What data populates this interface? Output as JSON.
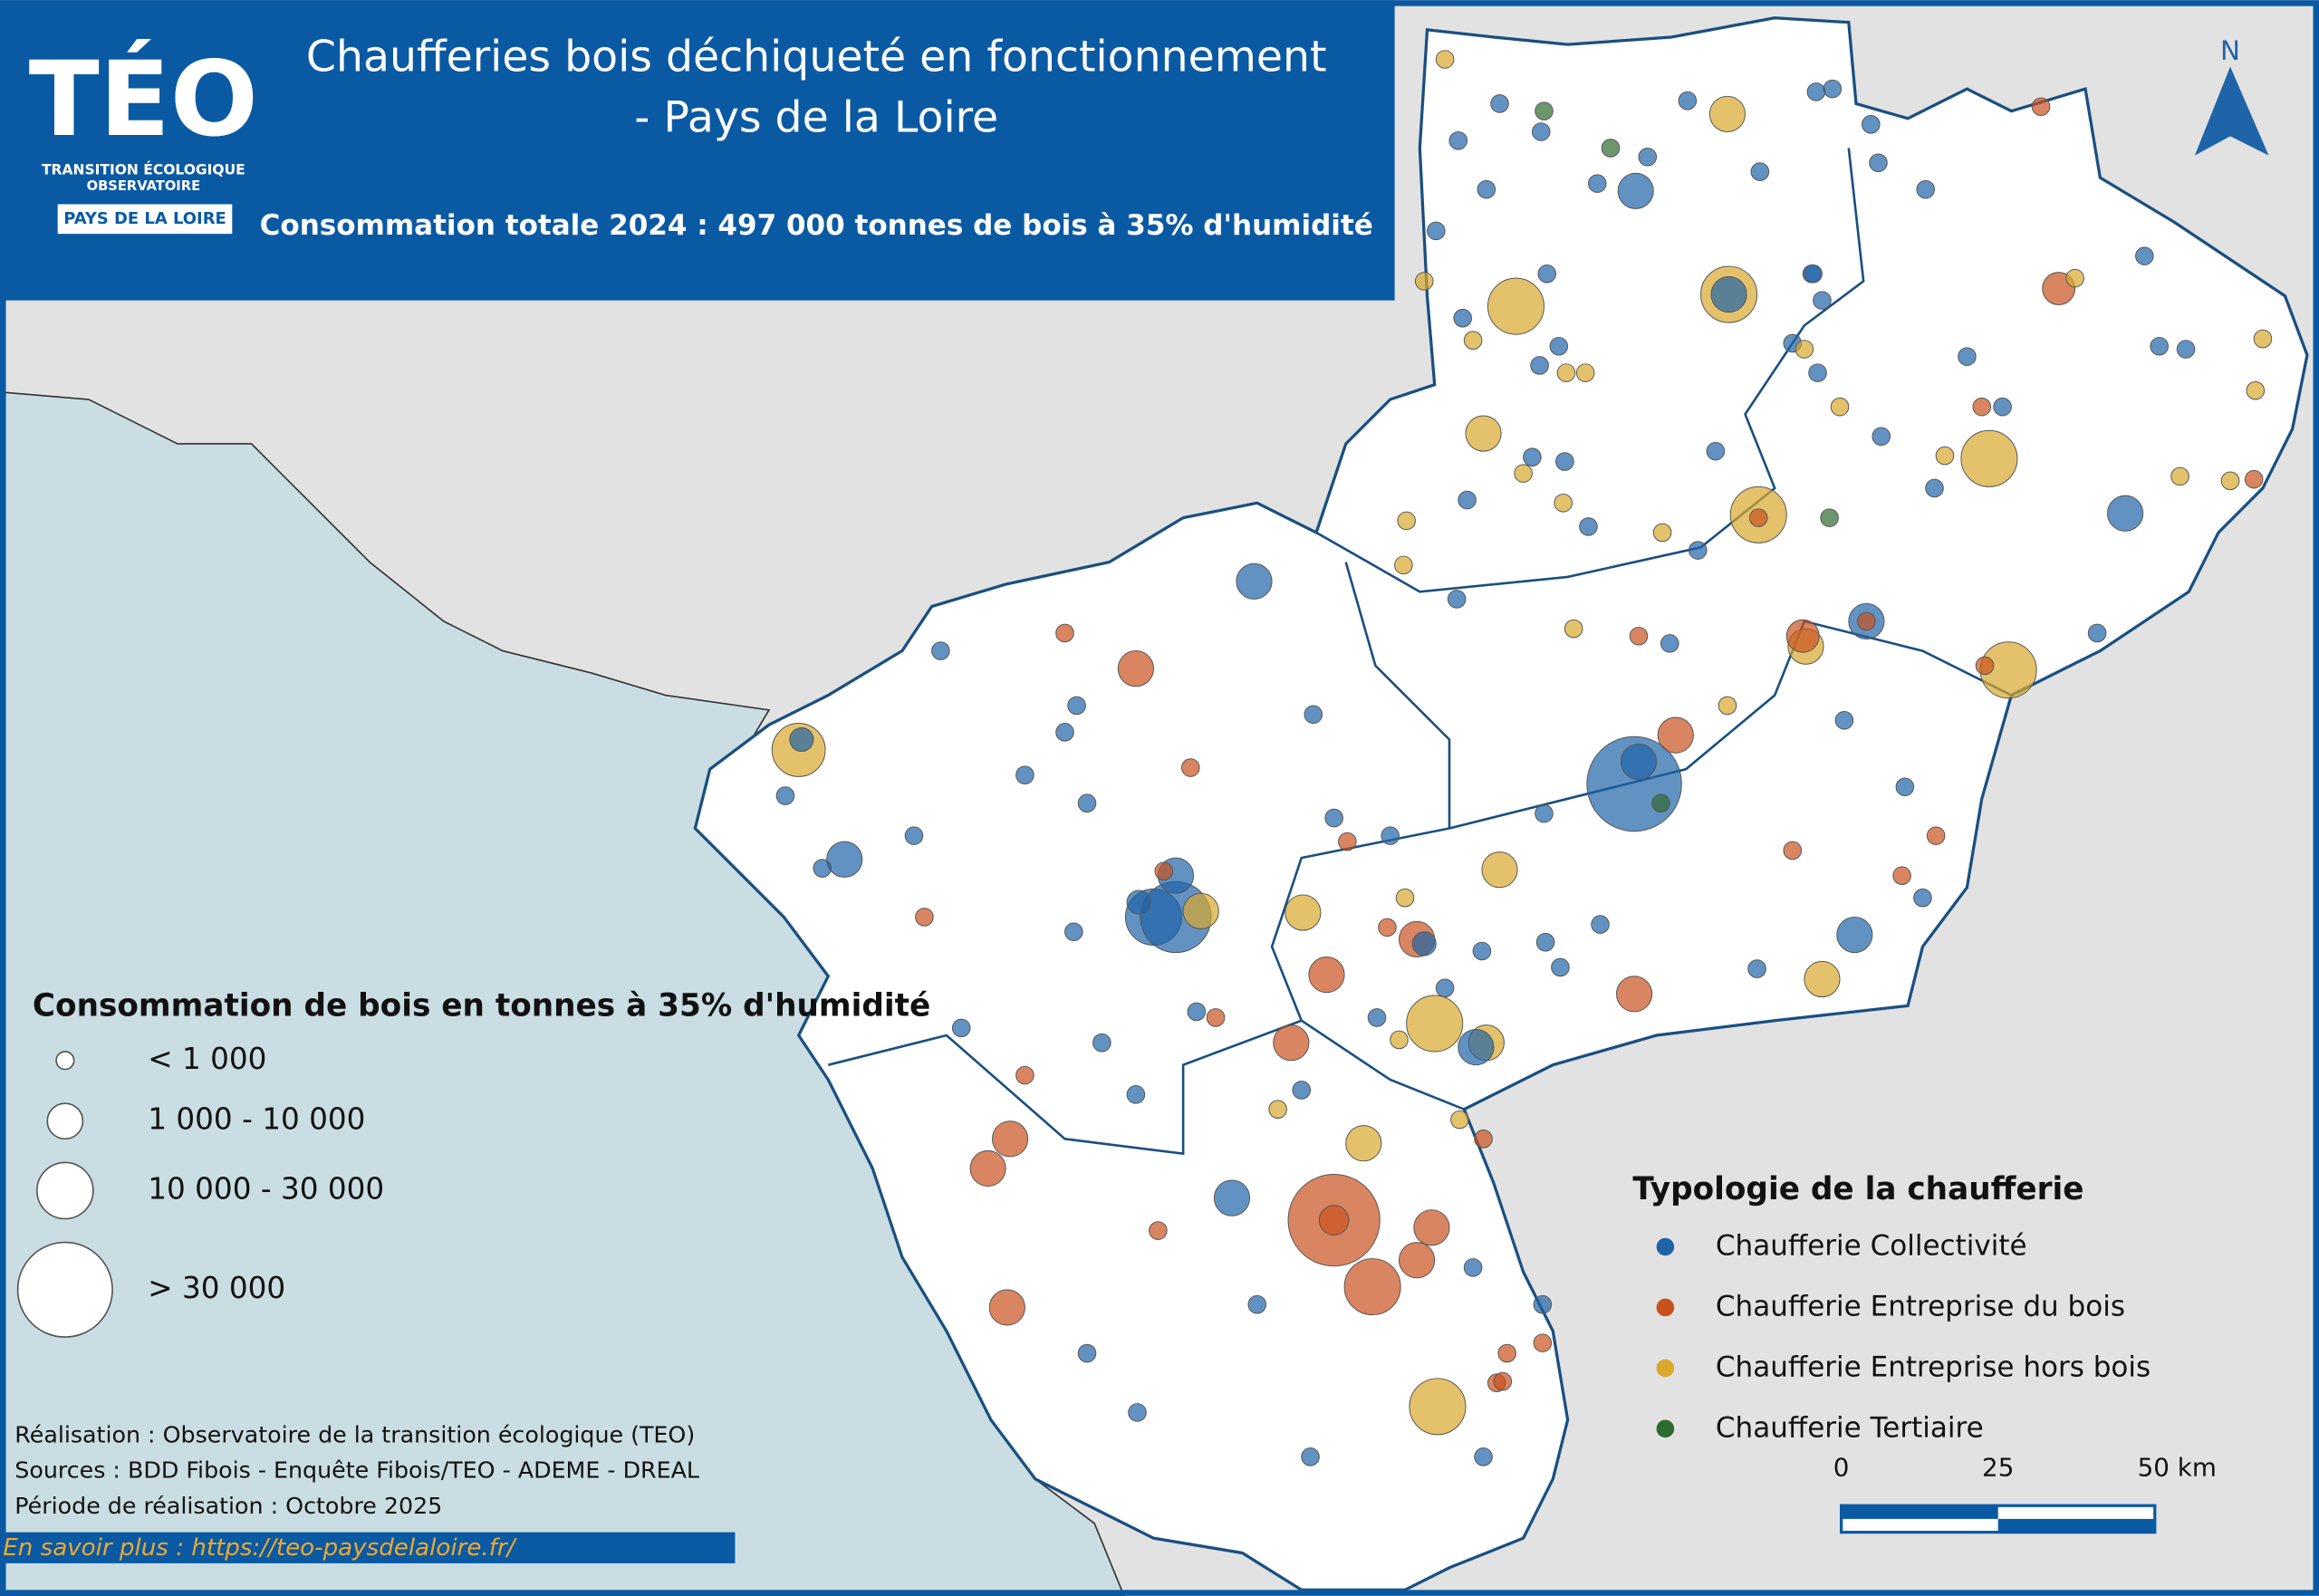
{
  "header": {
    "logo": {
      "name": "TÉO",
      "line1": "TRANSITION ÉCOLOGIQUE",
      "line2": "OBSERVATOIRE",
      "badge": "PAYS DE LA LOIRE"
    },
    "title": [
      "Chaufferies bois déchiqueté en fonctionnement",
      "- Pays de la Loire"
    ],
    "subtitle": "Consommation totale 2024 : 497 000 tonnes de bois à 35% d'humidité"
  },
  "size_legend": {
    "title": "Consommation de bois en tonnes à 35% d'humidité",
    "classes": [
      "< 1 000",
      "1 000 - 10 000",
      "10 000 - 30 000",
      "> 30 000"
    ]
  },
  "type_legend": {
    "title": "Typologie de la chaufferie",
    "items": [
      {
        "label": "Chaufferie Collectivité",
        "color": "#1f64a8"
      },
      {
        "label": "Chaufferie Entreprise du bois",
        "color": "#c9511e"
      },
      {
        "label": "Chaufferie Entreprise hors bois",
        "color": "#d9a82c"
      },
      {
        "label": "Chaufferie Tertiaire",
        "color": "#2e6b2e"
      }
    ]
  },
  "credits": [
    "Réalisation : Observatoire de la transition écologique (TEO)",
    "Sources : BDD Fibois - Enquête Fibois/TEO - ADEME - DREAL",
    "Période de réalisation : Octobre 2025"
  ],
  "link": "En savoir plus : https://teo-paysdelaloire.fr/",
  "scale_bar": {
    "labels": [
      "0",
      "25",
      "50 km"
    ]
  },
  "north": "N"
}
